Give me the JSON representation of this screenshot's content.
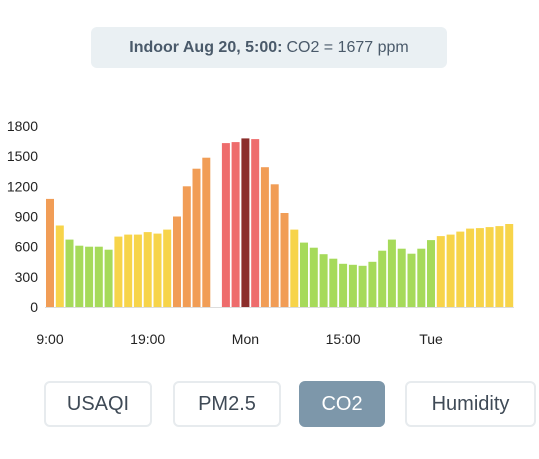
{
  "tooltip": {
    "label": "Indoor Aug 20, 5:00:",
    "value": "CO2 = 1677 ppm"
  },
  "tabs": [
    {
      "label": "USAQI"
    },
    {
      "label": "PM2.5"
    },
    {
      "label": "CO2",
      "active": true
    },
    {
      "label": "Humidity"
    }
  ],
  "colors": {
    "red_dark": "#8b2e2b",
    "red": "#ee6c6c",
    "orange": "#f19d56",
    "yellow": "#f7d44a",
    "green": "#a6da5a",
    "axis": "#6a6a6a",
    "gridline": "#e6e6e6"
  },
  "chart_data": {
    "type": "bar",
    "title": "",
    "xlabel": "",
    "ylabel": "",
    "ylim": [
      0,
      1800
    ],
    "yticks": [
      0,
      300,
      600,
      900,
      1200,
      1500,
      1800
    ],
    "xtick_labels": [
      {
        "label": "9:00",
        "index": 0
      },
      {
        "label": "19:00",
        "index": 10
      },
      {
        "label": "Mon",
        "index": 20
      },
      {
        "label": "15:00",
        "index": 30
      },
      {
        "label": "Tue",
        "index": 39
      }
    ],
    "values": [
      1075,
      810,
      670,
      610,
      600,
      600,
      570,
      700,
      720,
      720,
      745,
      730,
      770,
      900,
      1200,
      1375,
      1485,
      null,
      1630,
      1640,
      1677,
      1670,
      1390,
      1220,
      935,
      770,
      640,
      590,
      525,
      480,
      430,
      420,
      410,
      450,
      560,
      670,
      580,
      530,
      580,
      665,
      705,
      720,
      750,
      780,
      785,
      795,
      805,
      825
    ],
    "highlight_index": 20
  }
}
